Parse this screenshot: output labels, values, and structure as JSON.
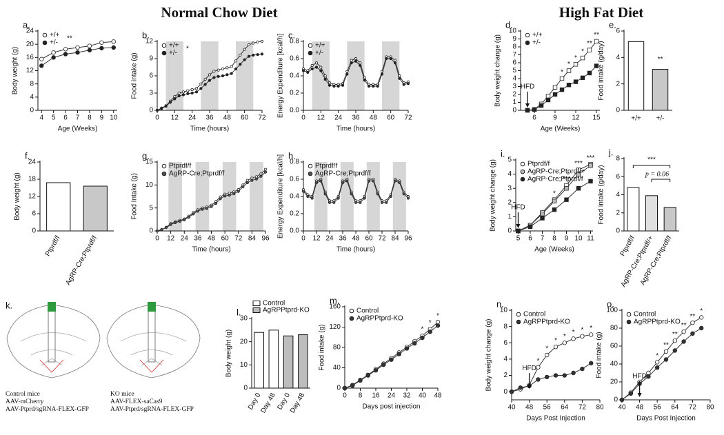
{
  "titles": [
    "Normal Chow Diet",
    "High Fat Diet"
  ],
  "diagram": {
    "label": "k.",
    "left": [
      "Control mice",
      "AAV-mCherry",
      "AAV-Ptprd/sgRNA-FLEX-GFP"
    ],
    "right": [
      "KO mice",
      "AAV-FLEX-saCas9",
      "AAV-Ptprd/sgRNA-FLEX-GFP"
    ]
  },
  "chart_data": [
    {
      "type": "line",
      "label": "a.",
      "y_label": "Body weight (g)",
      "x_label": "Age  (Weeks)",
      "x": [
        4,
        5,
        6,
        7,
        8,
        9,
        10
      ],
      "xlim": [
        3.7,
        10.3
      ],
      "xticks": [
        4,
        5,
        6,
        7,
        8,
        9,
        10
      ],
      "ylim": [
        0,
        24
      ],
      "yticks": [
        0,
        4,
        8,
        12,
        16,
        20,
        24
      ],
      "legend_note": "**",
      "series": [
        {
          "name": "+/+",
          "color": "#ffffff",
          "values": [
            15.5,
            17.5,
            18.5,
            19,
            19.5,
            20.5,
            20.8
          ]
        },
        {
          "name": "+/-",
          "color": "#222222",
          "values": [
            13.5,
            16,
            17,
            17.5,
            18.2,
            18.8,
            19
          ]
        }
      ]
    },
    {
      "type": "line",
      "label": "b.",
      "y_label": "Food intake (g)",
      "x_label": "Time (hours)",
      "x": [
        0,
        3,
        6,
        9,
        12,
        15,
        18,
        21,
        24,
        27,
        30,
        33,
        36,
        39,
        42,
        45,
        48,
        51,
        54,
        57,
        60,
        63,
        66,
        69,
        72
      ],
      "xlim": [
        0,
        72
      ],
      "xticks": [
        0,
        12,
        24,
        36,
        48,
        60,
        72
      ],
      "ylim": [
        0,
        12
      ],
      "yticks": [
        0,
        3,
        6,
        9,
        12
      ],
      "dark_phases": [
        [
          6,
          18
        ],
        [
          30,
          42
        ],
        [
          54,
          66
        ]
      ],
      "legend_note": "*",
      "series": [
        {
          "name": "+/+",
          "color": "#ffffff",
          "values": [
            0,
            0.4,
            0.8,
            1.6,
            2.4,
            3.0,
            3.2,
            3.4,
            3.6,
            3.8,
            4.6,
            5.4,
            6.2,
            6.8,
            7.0,
            7.2,
            7.4,
            7.6,
            8.6,
            9.6,
            10.6,
            11.4,
            11.7,
            11.9,
            12.0
          ]
        },
        {
          "name": "+/-",
          "color": "#222222",
          "values": [
            0,
            0.3,
            0.7,
            1.4,
            2.0,
            2.5,
            2.7,
            2.9,
            3.0,
            3.2,
            3.8,
            4.5,
            5.2,
            5.7,
            5.9,
            6.0,
            6.2,
            6.4,
            7.2,
            8.0,
            8.8,
            9.4,
            9.6,
            9.7,
            9.8
          ]
        }
      ]
    },
    {
      "type": "line",
      "label": "c.",
      "y_label": "Energy Expenditure [kcal/h]",
      "x_label": "Time (hours)",
      "x": [
        0,
        3,
        6,
        9,
        12,
        15,
        18,
        21,
        24,
        27,
        30,
        33,
        36,
        39,
        42,
        45,
        48,
        51,
        54,
        57,
        60,
        63,
        66,
        69,
        72
      ],
      "xlim": [
        0,
        72
      ],
      "xticks": [
        0,
        12,
        24,
        36,
        48,
        60,
        72
      ],
      "ylim": [
        0,
        0.8
      ],
      "yticks": [
        {
          "value": 0,
          "label": "0.0"
        },
        0.2,
        0.4,
        0.6,
        0.8
      ],
      "dark_phases": [
        [
          6,
          18
        ],
        [
          30,
          42
        ],
        [
          54,
          66
        ]
      ],
      "series": [
        {
          "name": "+/+",
          "color": "#ffffff",
          "values": [
            0.48,
            0.46,
            0.52,
            0.55,
            0.5,
            0.4,
            0.32,
            0.3,
            0.3,
            0.31,
            0.45,
            0.58,
            0.6,
            0.55,
            0.38,
            0.3,
            0.3,
            0.3,
            0.45,
            0.62,
            0.62,
            0.58,
            0.4,
            0.32,
            0.33
          ]
        },
        {
          "name": "+/-",
          "color": "#222222",
          "values": [
            0.46,
            0.44,
            0.48,
            0.5,
            0.46,
            0.36,
            0.29,
            0.28,
            0.28,
            0.29,
            0.42,
            0.55,
            0.57,
            0.52,
            0.35,
            0.28,
            0.28,
            0.28,
            0.42,
            0.6,
            0.6,
            0.55,
            0.37,
            0.3,
            0.31
          ]
        }
      ]
    },
    {
      "type": "line",
      "label": "d.",
      "y_label": "Body weight change (g)",
      "x_label": "Age  (Weeks)",
      "marker": "square",
      "x": [
        5,
        6,
        7,
        8,
        9,
        10,
        11,
        12,
        13,
        14,
        15
      ],
      "xlim": [
        4,
        15.5
      ],
      "xticks": [
        6,
        9,
        12,
        15
      ],
      "ylim": [
        0,
        10
      ],
      "yticks": [
        0,
        1,
        2,
        3,
        4,
        5,
        6,
        7,
        8,
        9,
        10
      ],
      "event": {
        "text": "HFD",
        "x": 5
      },
      "annotations": [
        {
          "text": "*",
          "x": 10
        },
        {
          "text": "*",
          "x": 11
        },
        {
          "text": "*",
          "x": 12
        },
        {
          "text": "*",
          "x": 13
        },
        {
          "text": "**",
          "x": 14
        },
        {
          "text": "**",
          "x": 15
        }
      ],
      "series": [
        {
          "name": "+/+",
          "color": "#ffffff",
          "values": [
            0,
            0.1,
            0.8,
            1.8,
            2.9,
            4,
            5,
            5.8,
            6.6,
            7.6,
            8.7
          ]
        },
        {
          "name": "+/-",
          "color": "#222222",
          "values": [
            0,
            0.1,
            0.6,
            1.3,
            2.0,
            2.6,
            3.2,
            3.6,
            4.1,
            4.7,
            5.6
          ]
        }
      ]
    },
    {
      "type": "bar",
      "label": "e.",
      "y_label": "Food intake (g/day)",
      "categories": [
        "+/+",
        "+/-"
      ],
      "values": [
        5.2,
        3.1
      ],
      "colors": [
        "#ffffff",
        "#c8c8c8"
      ],
      "ylim": [
        0,
        6
      ],
      "yticks": [
        0,
        2,
        4,
        6
      ],
      "annotations": [
        "**"
      ]
    },
    {
      "type": "bar",
      "label": "f.",
      "y_label": "Body weight (g)",
      "categories": [
        "Ptprdf/f",
        "AgRP-Cre;Ptprdf/f"
      ],
      "values": [
        16.8,
        15.6
      ],
      "colors": [
        "#ffffff",
        "#c8c8c8"
      ],
      "ylim": [
        0,
        24
      ],
      "yticks": [
        0,
        6,
        12,
        18,
        24
      ]
    },
    {
      "type": "line",
      "label": "g.",
      "y_label": "Food Intake (g)",
      "x_label": "Time (hours)",
      "x": [
        0,
        4,
        8,
        12,
        16,
        20,
        24,
        28,
        32,
        36,
        40,
        44,
        48,
        52,
        56,
        60,
        64,
        68,
        72,
        76,
        80,
        84,
        88,
        92,
        96
      ],
      "xlim": [
        0,
        96
      ],
      "xticks": [
        0,
        12,
        24,
        36,
        48,
        60,
        72,
        84,
        96
      ],
      "ylim": [
        0,
        15
      ],
      "yticks": [
        0,
        5,
        10,
        15
      ],
      "dark_phases": [
        [
          10,
          22
        ],
        [
          34,
          46
        ],
        [
          58,
          70
        ],
        [
          82,
          94
        ]
      ],
      "series": [
        {
          "name": "Ptprdf/f",
          "color": "#ffffff",
          "values": [
            0,
            0.3,
            0.8,
            1.6,
            2,
            2.3,
            2.6,
            3.2,
            4,
            4.6,
            5,
            5.2,
            5.6,
            6.4,
            7.4,
            8,
            8.2,
            8.5,
            9,
            10,
            11,
            11.5,
            11.8,
            12.4,
            13.4
          ]
        },
        {
          "name": "AgRP-Cre;Ptprdf/f",
          "color": "#555555",
          "values": [
            0,
            0.3,
            0.7,
            1.4,
            1.8,
            2.1,
            2.4,
            3,
            3.7,
            4.3,
            4.7,
            4.9,
            5.3,
            6,
            7,
            7.6,
            7.8,
            8.1,
            8.6,
            9.6,
            10.5,
            11,
            11.3,
            11.9,
            12.8
          ]
        }
      ]
    },
    {
      "type": "line",
      "label": "h.",
      "y_label": "Energy Expenditure [kcal/h]",
      "x_label": "Time (hours)",
      "x": [
        0,
        4,
        8,
        12,
        16,
        20,
        24,
        28,
        32,
        36,
        40,
        44,
        48,
        52,
        56,
        60,
        64,
        68,
        72,
        76,
        80,
        84,
        88,
        92,
        96
      ],
      "xlim": [
        0,
        96
      ],
      "xticks": [
        0,
        12,
        24,
        36,
        48,
        60,
        72,
        84,
        96
      ],
      "ylim": [
        0,
        0.8
      ],
      "yticks": [
        {
          "value": 0,
          "label": "0.0"
        },
        0.2,
        0.4,
        0.6,
        0.8
      ],
      "dark_phases": [
        [
          10,
          22
        ],
        [
          34,
          46
        ],
        [
          58,
          70
        ],
        [
          82,
          94
        ]
      ],
      "series": [
        {
          "name": "Ptprdf/f",
          "color": "#ffffff",
          "values": [
            0.48,
            0.42,
            0.4,
            0.58,
            0.6,
            0.45,
            0.35,
            0.35,
            0.4,
            0.58,
            0.6,
            0.45,
            0.35,
            0.35,
            0.4,
            0.6,
            0.6,
            0.45,
            0.35,
            0.35,
            0.42,
            0.6,
            0.58,
            0.45,
            0.4
          ]
        },
        {
          "name": "AgRP-Cre;Ptprdf/f",
          "color": "#555555",
          "values": [
            0.46,
            0.4,
            0.38,
            0.56,
            0.58,
            0.43,
            0.33,
            0.33,
            0.38,
            0.56,
            0.58,
            0.43,
            0.33,
            0.33,
            0.38,
            0.58,
            0.58,
            0.43,
            0.33,
            0.33,
            0.4,
            0.58,
            0.56,
            0.43,
            0.38
          ]
        }
      ]
    },
    {
      "type": "line",
      "label": "i.",
      "y_label": "Body weight change (g)",
      "x_label": "Age  (Weeks)",
      "marker": "square",
      "x": [
        5,
        6,
        7,
        8,
        9,
        10,
        11
      ],
      "xlim": [
        4.8,
        11.2
      ],
      "xticks": [
        5,
        6,
        7,
        8,
        9,
        10,
        11
      ],
      "ylim": [
        0,
        5
      ],
      "yticks": [
        0,
        1,
        2,
        3,
        4,
        5
      ],
      "event": {
        "text": "HFD",
        "x": 5
      },
      "annotations": [
        {
          "text": "*",
          "x": 8
        },
        {
          "text": "***",
          "x": 9
        },
        {
          "text": "***",
          "x": 10
        },
        {
          "text": "***",
          "x": 11
        }
      ],
      "series": [
        {
          "name": "Ptprdf/f",
          "color": "#ffffff",
          "values": [
            0,
            0.4,
            1.3,
            2.2,
            3.2,
            4.3,
            4.7
          ]
        },
        {
          "name": "AgRP-Cre;Ptprdf/+",
          "color": "#bbbbbb",
          "values": [
            0,
            0.4,
            1.2,
            2.1,
            3.0,
            4.0,
            4.6
          ]
        },
        {
          "name": "AgRP-Cre;Ptprdf/f",
          "color": "#222222",
          "values": [
            0,
            0.3,
            0.9,
            1.5,
            2.2,
            3.0,
            3.5
          ]
        }
      ]
    },
    {
      "type": "bar",
      "label": "j.",
      "y_label": "Food intake (g/day)",
      "categories": [
        "Ptprdf/f",
        "AgRP-Cre;Ptprdf/+",
        "AgRP-Cre;Ptprdf/f"
      ],
      "values": [
        4.8,
        3.9,
        2.6
      ],
      "colors": [
        "#ffffff",
        "#e0e0e0",
        "#c8c8c8"
      ],
      "ylim": [
        0,
        8
      ],
      "yticks": [
        0,
        2,
        4,
        6,
        8
      ],
      "annotations": [
        "***",
        "p = 0.06"
      ]
    },
    {
      "type": "bar",
      "label": "l.",
      "y_label": "Body weight (g)",
      "categories": [
        "Day 0",
        "Day 48",
        "Day 0",
        "Day 48"
      ],
      "ylim": [
        0,
        30
      ],
      "yticks": [
        0,
        10,
        20,
        30
      ],
      "series": [
        {
          "name": "Control",
          "color": "#ffffff",
          "values": [
            24,
            25,
            null,
            null
          ]
        },
        {
          "name": "AgRPPtprd-KO",
          "color": "#bdbdbd",
          "values": [
            null,
            null,
            22.5,
            23
          ]
        }
      ]
    },
    {
      "type": "line",
      "label": "m.",
      "y_label": "Food intake (g)",
      "x_label": "Days post injection",
      "x": [
        0,
        4,
        8,
        12,
        16,
        20,
        24,
        28,
        32,
        36,
        40,
        44,
        48
      ],
      "xlim": [
        0,
        48
      ],
      "xticks": [
        0,
        8,
        16,
        24,
        32,
        40,
        48
      ],
      "ylim": [
        0,
        160
      ],
      "yticks": [
        0,
        40,
        80,
        120,
        160
      ],
      "annotations": [
        {
          "text": "*",
          "x": 40
        },
        {
          "text": "*",
          "x": 44
        },
        {
          "text": "*",
          "x": 48
        }
      ],
      "series": [
        {
          "name": "Control",
          "color": "#ffffff",
          "values": [
            0,
            6,
            16,
            26,
            37,
            48,
            59,
            70,
            81,
            92,
            103,
            116,
            130
          ]
        },
        {
          "name": "AgRPPtprd-KO",
          "color": "#333333",
          "values": [
            0,
            5,
            15,
            25,
            35,
            46,
            56,
            67,
            78,
            88,
            99,
            111,
            123
          ]
        }
      ]
    },
    {
      "type": "line",
      "label": "n.",
      "y_label": "Body weight change (g)",
      "x_label": "Days Post Injection",
      "x": [
        40,
        44,
        48,
        52,
        56,
        60,
        64,
        68,
        72,
        76
      ],
      "xlim": [
        40,
        80
      ],
      "xticks": [
        40,
        48,
        56,
        64,
        72,
        80
      ],
      "ylim": [
        -1,
        10
      ],
      "yticks": [
        0,
        2,
        4,
        6,
        8,
        10
      ],
      "event": {
        "text": "HFD",
        "x": 48
      },
      "annotations": [
        {
          "text": "*",
          "x": 52
        },
        {
          "text": "*",
          "x": 56
        },
        {
          "text": "*",
          "x": 60
        },
        {
          "text": "*",
          "x": 64
        },
        {
          "text": "*",
          "x": 68
        },
        {
          "text": "*",
          "x": 72
        },
        {
          "text": "*",
          "x": 76
        }
      ],
      "series": [
        {
          "name": "Control",
          "color": "#ffffff",
          "values": [
            0,
            0.3,
            0.8,
            3,
            4.5,
            5.5,
            6,
            6.5,
            6.8,
            7
          ]
        },
        {
          "name": "AgRPPtprd-KO",
          "color": "#333333",
          "values": [
            0,
            0.5,
            0.7,
            1.5,
            1.8,
            2,
            2,
            2.3,
            2.8,
            3.5
          ]
        }
      ]
    },
    {
      "type": "line",
      "label": "o.",
      "y_label": "Food intake (g)",
      "x_label": "Days Post Injection",
      "x": [
        40,
        44,
        48,
        52,
        56,
        60,
        64,
        68,
        72,
        76
      ],
      "xlim": [
        40,
        80
      ],
      "xticks": [
        40,
        48,
        56,
        64,
        72,
        80
      ],
      "ylim": [
        0,
        100
      ],
      "yticks": [
        0,
        20,
        40,
        60,
        80,
        100
      ],
      "event": {
        "text": "HFD",
        "x": 48
      },
      "annotations": [
        {
          "text": "*",
          "x": 56
        },
        {
          "text": "**",
          "x": 60
        },
        {
          "text": "**",
          "x": 64
        },
        {
          "text": "**",
          "x": 68
        },
        {
          "text": "**",
          "x": 72
        },
        {
          "text": "*",
          "x": 76
        }
      ],
      "series": [
        {
          "name": "Control",
          "color": "#ffffff",
          "values": [
            0,
            8,
            20,
            30,
            42,
            54,
            66,
            76,
            86,
            92
          ]
        },
        {
          "name": "AgRPPtprd-KO",
          "color": "#333333",
          "values": [
            0,
            7,
            18,
            26,
            36,
            45,
            55,
            65,
            74,
            80
          ]
        }
      ]
    }
  ]
}
